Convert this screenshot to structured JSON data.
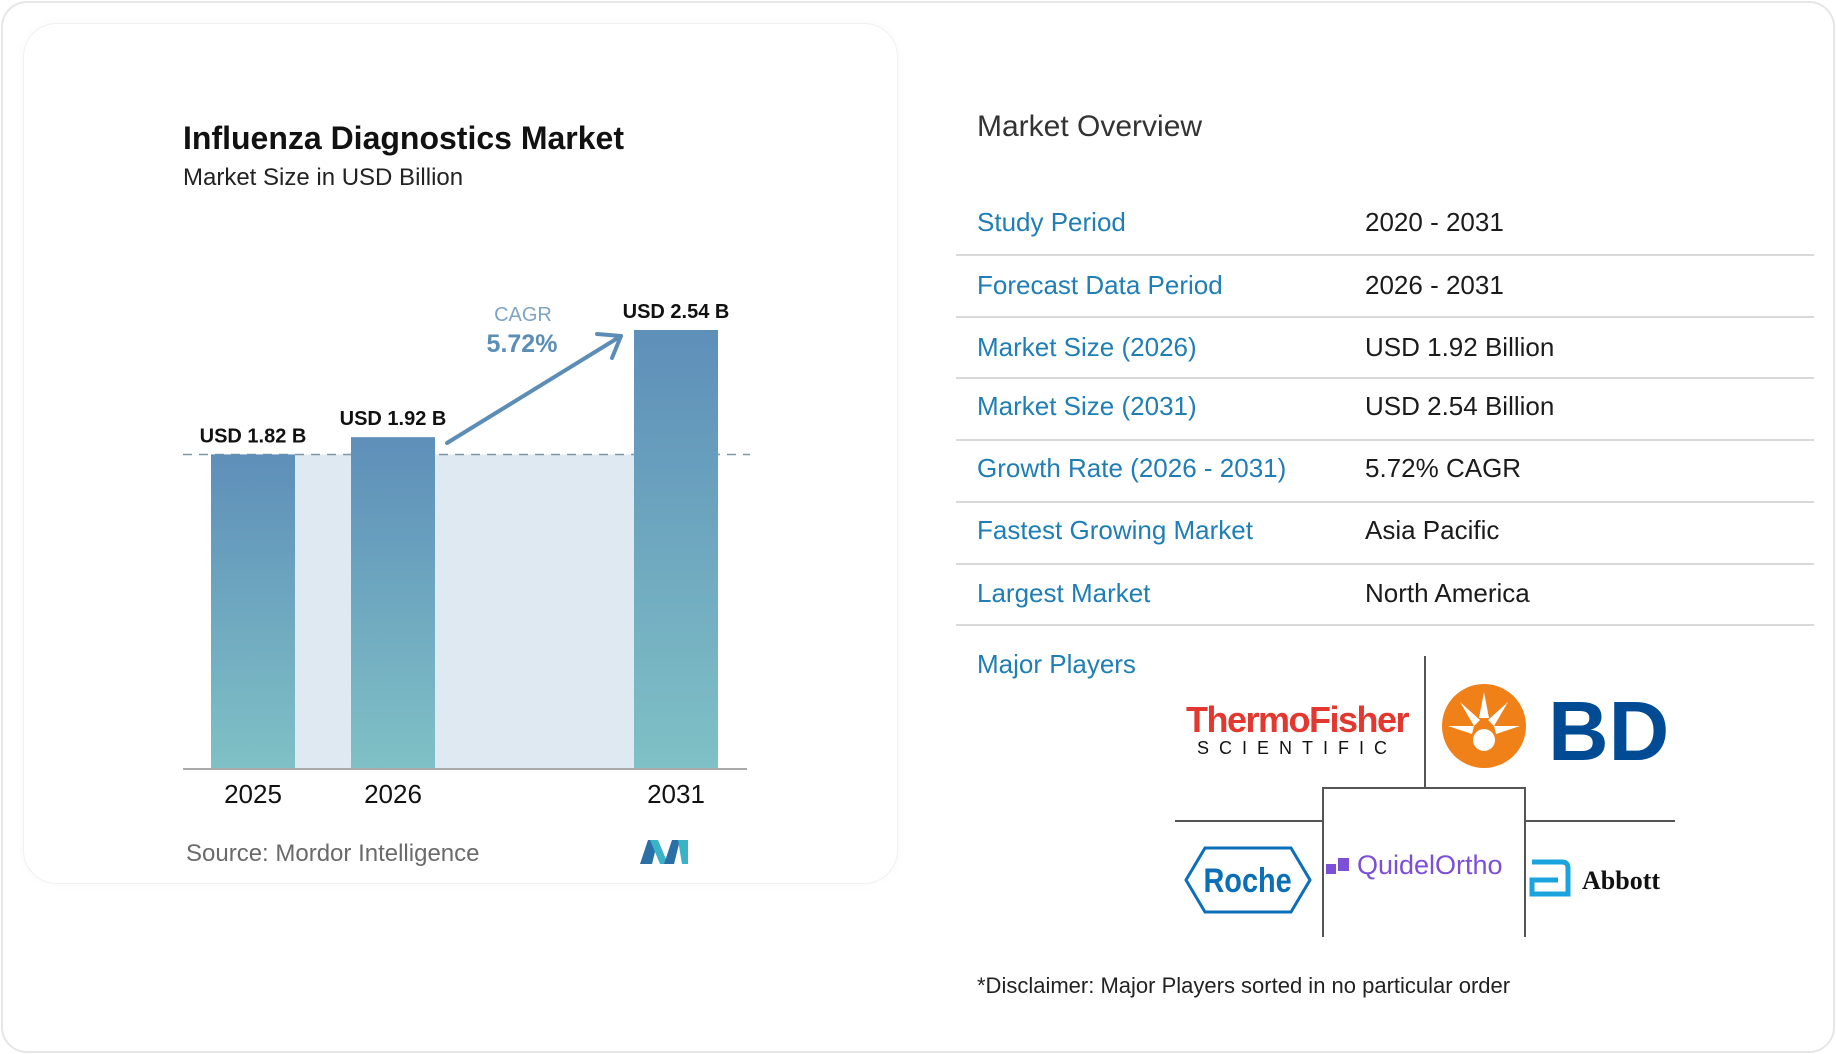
{
  "chart_data": {
    "type": "bar",
    "title": "Influenza Diagnostics Market",
    "subtitle": "Market Size in USD Billion",
    "categories": [
      "2025",
      "2026",
      "2031"
    ],
    "values": [
      1.82,
      1.92,
      2.54
    ],
    "data_labels": [
      "USD 1.82 B",
      "USD 1.92 B",
      "USD 2.54 B"
    ],
    "annotation": {
      "label": "CAGR",
      "value": "5.72%"
    },
    "colors": {
      "bar_top": "#5e8fb9",
      "bar_bottom": "#7fc1c6",
      "fill": "#dfe9f1",
      "annotation": "#5b8db6"
    },
    "grid": false
  },
  "source": "Source:  Mordor Intelligence",
  "overview": {
    "title": "Market Overview",
    "rows": [
      {
        "label": "Study Period",
        "value": "2020 - 2031"
      },
      {
        "label": "Forecast Data Period",
        "value": "2026 - 2031"
      },
      {
        "label": "Market Size (2026)",
        "value": "USD 1.92 Billion"
      },
      {
        "label": "Market Size (2031)",
        "value": "USD 2.54 Billion"
      },
      {
        "label": "Growth Rate (2026 - 2031)",
        "value": "5.72% CAGR"
      },
      {
        "label": "Fastest Growing Market",
        "value": "Asia Pacific"
      },
      {
        "label": "Largest Market",
        "value": "North America"
      }
    ],
    "major_players_label": "Major Players",
    "players": [
      "Thermo Fisher Scientific",
      "BD",
      "Roche",
      "QuidelOrtho",
      "Abbott"
    ],
    "disclaimer": "*Disclaimer: Major Players sorted in no particular order"
  }
}
